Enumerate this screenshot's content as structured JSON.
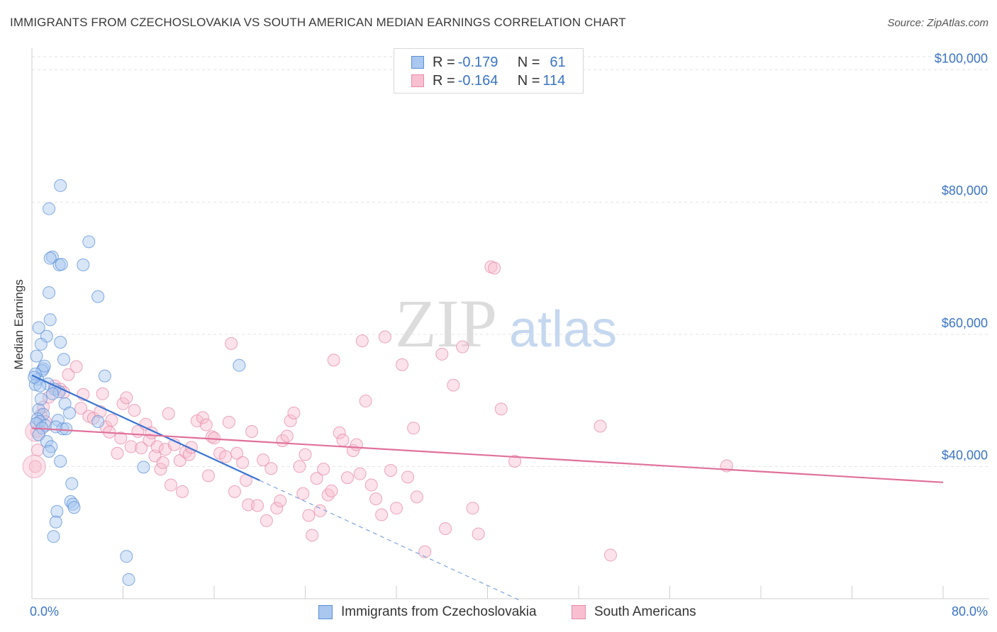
{
  "title": "IMMIGRANTS FROM CZECHOSLOVAKIA VS SOUTH AMERICAN MEDIAN EARNINGS CORRELATION CHART",
  "source": "Source: ZipAtlas.com",
  "watermark": {
    "zip": "ZIP",
    "atlas": "atlas"
  },
  "legend": {
    "rows": [
      {
        "r_label": "R = ",
        "r_value": "-0.179",
        "n_label": "N = ",
        "n_value": "61",
        "color": "#a9c7ef",
        "border": "#5b8fd6"
      },
      {
        "r_label": "R = ",
        "r_value": "-0.164",
        "n_label": "N = ",
        "n_value": "114",
        "color": "#f8bfd0",
        "border": "#e58aa8"
      }
    ]
  },
  "bottom_legend": [
    {
      "label": "Immigrants from Czechoslovakia",
      "color": "#a9c7ef",
      "border": "#5b8fd6"
    },
    {
      "label": "South Americans",
      "color": "#f8bfd0",
      "border": "#e58aa8"
    }
  ],
  "chart_data": {
    "type": "scatter",
    "xlabel": "",
    "ylabel": "Median Earnings",
    "xlim": [
      0,
      80
    ],
    "ylim": [
      20000,
      102000
    ],
    "x_tick_labels": [
      "0.0%",
      "80.0%"
    ],
    "y_ticks": [
      40000,
      60000,
      80000,
      100000
    ],
    "y_tick_labels": [
      "$40,000",
      "$60,000",
      "$80,000",
      "$100,000"
    ],
    "grid": true,
    "legend_position": "top-center",
    "series": [
      {
        "name": "Immigrants from Czechoslovakia",
        "color": "#5b8fd6",
        "fill": "#a9c7ef",
        "trend": {
          "x": [
            0.0,
            20.0
          ],
          "y": [
            53800,
            37900
          ],
          "dashed_to_x": 43.0
        },
        "points": [
          [
            2.5,
            82500
          ],
          [
            1.5,
            79000
          ],
          [
            5.0,
            74000
          ],
          [
            1.8,
            71700
          ],
          [
            1.6,
            71500
          ],
          [
            2.4,
            70500
          ],
          [
            2.6,
            70600
          ],
          [
            4.5,
            70500
          ],
          [
            1.5,
            66300
          ],
          [
            5.8,
            65700
          ],
          [
            1.6,
            62200
          ],
          [
            0.6,
            61000
          ],
          [
            1.3,
            59700
          ],
          [
            2.5,
            58800
          ],
          [
            0.8,
            58500
          ],
          [
            0.4,
            56700
          ],
          [
            2.8,
            56200
          ],
          [
            18.2,
            55300
          ],
          [
            1.0,
            54800
          ],
          [
            0.9,
            54500
          ],
          [
            6.4,
            53700
          ],
          [
            0.5,
            53200
          ],
          [
            1.4,
            52500
          ],
          [
            0.3,
            52400
          ],
          [
            0.7,
            52200
          ],
          [
            2.0,
            51700
          ],
          [
            2.4,
            51300
          ],
          [
            1.8,
            51000
          ],
          [
            2.9,
            49500
          ],
          [
            0.6,
            48600
          ],
          [
            1.0,
            47900
          ],
          [
            3.3,
            48100
          ],
          [
            0.5,
            47200
          ],
          [
            0.7,
            46800
          ],
          [
            2.3,
            47000
          ],
          [
            5.8,
            46800
          ],
          [
            0.4,
            46500
          ],
          [
            1.2,
            46200
          ],
          [
            0.9,
            45800
          ],
          [
            2.7,
            45700
          ],
          [
            3.0,
            45700
          ],
          [
            0.6,
            44800
          ],
          [
            1.3,
            43800
          ],
          [
            1.7,
            43000
          ],
          [
            1.5,
            42300
          ],
          [
            2.5,
            40800
          ],
          [
            9.8,
            39900
          ],
          [
            3.5,
            37400
          ],
          [
            3.4,
            34700
          ],
          [
            3.6,
            34300
          ],
          [
            3.7,
            33800
          ],
          [
            2.2,
            33200
          ],
          [
            2.1,
            31600
          ],
          [
            1.9,
            29400
          ],
          [
            8.3,
            26400
          ],
          [
            8.5,
            22900
          ],
          [
            0.3,
            54000
          ],
          [
            0.2,
            53500
          ],
          [
            1.1,
            55200
          ],
          [
            0.8,
            50200
          ],
          [
            2.1,
            46000
          ]
        ]
      },
      {
        "name": "South Americans",
        "color": "#e58aa8",
        "fill": "#f8bfd0",
        "trend": {
          "x": [
            0.0,
            80.0
          ],
          "y": [
            45800,
            37600
          ]
        },
        "points": [
          [
            0.3,
            40000
          ],
          [
            0.4,
            45300
          ],
          [
            0.5,
            42500
          ],
          [
            1.0,
            49000
          ],
          [
            1.5,
            50500
          ],
          [
            2.0,
            52200
          ],
          [
            2.5,
            51700
          ],
          [
            3.2,
            53900
          ],
          [
            3.9,
            55100
          ],
          [
            4.3,
            48800
          ],
          [
            4.5,
            50900
          ],
          [
            5.0,
            47600
          ],
          [
            5.4,
            47300
          ],
          [
            6.0,
            48300
          ],
          [
            6.2,
            51000
          ],
          [
            6.5,
            46000
          ],
          [
            6.8,
            45200
          ],
          [
            7.0,
            47000
          ],
          [
            7.5,
            42000
          ],
          [
            7.8,
            44300
          ],
          [
            8.0,
            49500
          ],
          [
            8.3,
            50400
          ],
          [
            8.7,
            43000
          ],
          [
            9.0,
            48500
          ],
          [
            9.3,
            45300
          ],
          [
            9.6,
            42800
          ],
          [
            10.0,
            46400
          ],
          [
            10.3,
            44000
          ],
          [
            10.5,
            45100
          ],
          [
            10.8,
            41600
          ],
          [
            11.0,
            43000
          ],
          [
            11.3,
            39600
          ],
          [
            11.5,
            40600
          ],
          [
            11.7,
            42600
          ],
          [
            12.0,
            48000
          ],
          [
            12.2,
            37200
          ],
          [
            12.5,
            43300
          ],
          [
            13.0,
            40900
          ],
          [
            13.2,
            36200
          ],
          [
            13.5,
            42200
          ],
          [
            13.8,
            41800
          ],
          [
            14.0,
            42900
          ],
          [
            14.5,
            46900
          ],
          [
            15.0,
            47400
          ],
          [
            15.3,
            46300
          ],
          [
            15.5,
            38600
          ],
          [
            15.8,
            44500
          ],
          [
            16.0,
            44300
          ],
          [
            16.5,
            42000
          ],
          [
            17.0,
            41500
          ],
          [
            17.3,
            46700
          ],
          [
            17.5,
            58600
          ],
          [
            17.8,
            36200
          ],
          [
            18.0,
            42000
          ],
          [
            18.5,
            40600
          ],
          [
            18.8,
            37900
          ],
          [
            19.0,
            34200
          ],
          [
            19.3,
            45300
          ],
          [
            19.8,
            34100
          ],
          [
            20.3,
            41000
          ],
          [
            20.6,
            31800
          ],
          [
            21.0,
            39700
          ],
          [
            21.5,
            33700
          ],
          [
            21.8,
            34800
          ],
          [
            22.0,
            43900
          ],
          [
            22.4,
            44600
          ],
          [
            22.7,
            46900
          ],
          [
            23.0,
            48100
          ],
          [
            23.5,
            40000
          ],
          [
            23.8,
            35900
          ],
          [
            24.0,
            41800
          ],
          [
            24.3,
            32600
          ],
          [
            24.6,
            29600
          ],
          [
            25.0,
            38200
          ],
          [
            25.3,
            33300
          ],
          [
            25.6,
            39600
          ],
          [
            26.0,
            35700
          ],
          [
            26.3,
            36300
          ],
          [
            26.5,
            56100
          ],
          [
            27.0,
            45100
          ],
          [
            27.3,
            44000
          ],
          [
            27.7,
            38300
          ],
          [
            28.2,
            42400
          ],
          [
            28.5,
            43300
          ],
          [
            28.8,
            38900
          ],
          [
            29.0,
            59000
          ],
          [
            29.3,
            49900
          ],
          [
            29.8,
            37200
          ],
          [
            30.2,
            35100
          ],
          [
            30.7,
            32700
          ],
          [
            31.0,
            59600
          ],
          [
            31.5,
            39400
          ],
          [
            32.0,
            33700
          ],
          [
            32.5,
            55400
          ],
          [
            33.0,
            38400
          ],
          [
            33.5,
            45800
          ],
          [
            33.8,
            35400
          ],
          [
            34.5,
            27100
          ],
          [
            36.0,
            57000
          ],
          [
            36.3,
            30600
          ],
          [
            37.0,
            52300
          ],
          [
            37.8,
            58100
          ],
          [
            38.7,
            33700
          ],
          [
            39.2,
            29800
          ],
          [
            40.3,
            70200
          ],
          [
            40.6,
            70000
          ],
          [
            41.2,
            48700
          ],
          [
            42.4,
            40800
          ],
          [
            49.9,
            46100
          ],
          [
            50.8,
            26600
          ],
          [
            61.0,
            40100
          ],
          [
            0.8,
            47800
          ],
          [
            1.2,
            46800
          ],
          [
            2.8,
            51200
          ]
        ]
      }
    ]
  }
}
